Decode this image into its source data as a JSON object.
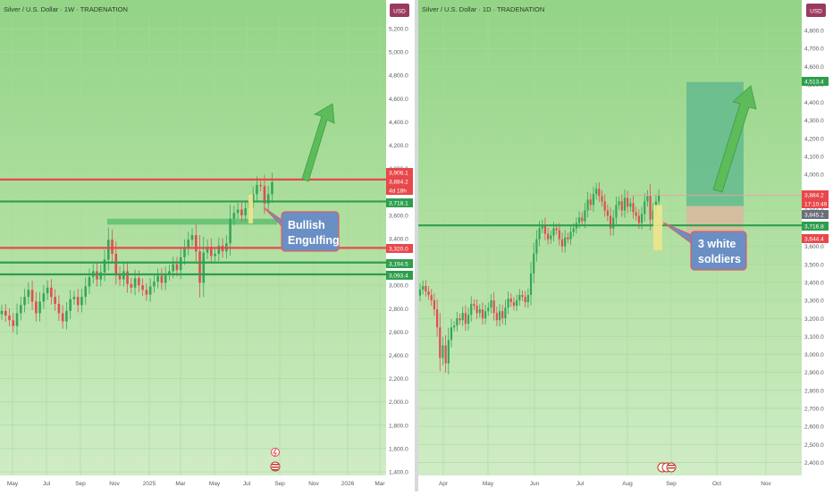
{
  "panels": [
    {
      "title": "Silver / U.S. Dollar · 1W · TRADENATION",
      "currency": "USD",
      "y_labels": [
        "5,200.0",
        "5,000.0",
        "4,800.0",
        "4,600.0",
        "4,400.0",
        "4,200.0",
        "4,000.0",
        "3,800.0",
        "3,600.0",
        "3,400.0",
        "3,200.0",
        "3,000.0",
        "2,800.0",
        "2,600.0",
        "2,400.0",
        "2,200.0",
        "2,000.0",
        "1,800.0",
        "1,600.0",
        "1,400.0"
      ],
      "x_labels": [
        "May",
        "Jul",
        "Sep",
        "Nov",
        "2025",
        "Mar",
        "May",
        "Jul",
        "Sep",
        "Nov",
        "2026",
        "Mar"
      ],
      "price_badges": [
        {
          "text": "3,906.1",
          "color": "#e8474b"
        },
        {
          "text": "3,884.2",
          "color": "#e8474b"
        },
        {
          "text": "4d 18h",
          "color": "#e8474b"
        },
        {
          "text": "3,718.1",
          "color": "#2e9e4e"
        },
        {
          "text": "3,320.0",
          "color": "#e8474b"
        },
        {
          "text": "3,194.5",
          "color": "#2e9e4e"
        },
        {
          "text": "3,093.4",
          "color": "#2e9e4e"
        }
      ],
      "annotation": {
        "line1": "Bullish",
        "line2": "Engulfing"
      }
    },
    {
      "title": "Silver / U.S. Dollar · 1D · TRADENATION",
      "currency": "USD",
      "y_labels": [
        "4,800.0",
        "4,700.0",
        "4,600.0",
        "4,500.0",
        "4,400.0",
        "4,300.0",
        "4,200.0",
        "4,100.0",
        "4,000.0",
        "3,900.0",
        "3,800.0",
        "3,700.0",
        "3,600.0",
        "3,500.0",
        "3,400.0",
        "3,300.0",
        "3,200.0",
        "3,100.0",
        "3,000.0",
        "2,900.0",
        "2,800.0",
        "2,700.0",
        "2,600.0",
        "2,500.0",
        "2,400.0"
      ],
      "x_labels": [
        "Apr",
        "May",
        "Jun",
        "Jul",
        "Aug",
        "Sep",
        "Oct",
        "Nov"
      ],
      "price_badges": [
        {
          "text": "4,513.4",
          "color": "#2e9e4e"
        },
        {
          "text": "3,884.2",
          "color": "#e8474b"
        },
        {
          "text": "17:10:49",
          "color": "#e8474b"
        },
        {
          "text": "3,845.2",
          "color": "#6a6f7a"
        },
        {
          "text": "3,716.8",
          "color": "#2e9e4e"
        },
        {
          "text": "3,644.4",
          "color": "#e8474b"
        }
      ],
      "annotation": {
        "line1": "3 white",
        "line2": "soldiers"
      }
    }
  ],
  "chart_data": [
    {
      "type": "candlestick",
      "title": "Silver / U.S. Dollar · 1W · TRADENATION",
      "ylim": [
        1400,
        5300
      ],
      "series": [
        {
          "values": [
            2780,
            2740,
            2700,
            2650,
            2760,
            2830,
            2900,
            2960,
            2860,
            2760,
            2860,
            2930,
            2980,
            2900,
            2840,
            2760,
            2690,
            2780,
            2880,
            2900,
            2830,
            2900,
            2990,
            3070,
            3120,
            3050,
            3110,
            3220,
            3390,
            3270,
            3100,
            3050,
            3120,
            3010,
            2980,
            3060,
            3000,
            2960,
            2920,
            2990,
            3030,
            3080,
            3020,
            3090,
            3120,
            3180,
            3130,
            3240,
            3320,
            3390,
            3430,
            3290,
            3020,
            3280,
            3330,
            3250,
            3270,
            3340,
            3290,
            3360,
            3570,
            3620,
            3650,
            3600,
            3660,
            3720,
            3780,
            3860,
            3850,
            3700,
            3780,
            3884
          ]
        }
      ],
      "levels": [
        3906.1,
        3718.1,
        3320.0,
        3194.5,
        3093.4
      ],
      "zone": [
        3520,
        3570
      ]
    },
    {
      "type": "candlestick",
      "title": "Silver / U.S. Dollar · 1D · TRADENATION",
      "ylim": [
        2400,
        4900
      ],
      "series": [
        {
          "values": [
            3360,
            3380,
            3350,
            3330,
            3300,
            3250,
            3150,
            2980,
            3050,
            2950,
            3080,
            3150,
            3160,
            3200,
            3190,
            3230,
            3170,
            3220,
            3280,
            3270,
            3230,
            3250,
            3200,
            3240,
            3260,
            3300,
            3230,
            3190,
            3240,
            3200,
            3260,
            3310,
            3290,
            3270,
            3300,
            3330,
            3320,
            3290,
            3330,
            3450,
            3560,
            3640,
            3700,
            3720,
            3670,
            3640,
            3660,
            3700,
            3690,
            3640,
            3600,
            3650,
            3640,
            3680,
            3700,
            3730,
            3760,
            3740,
            3800,
            3860,
            3830,
            3890,
            3920,
            3880,
            3850,
            3800,
            3770,
            3700,
            3760,
            3830,
            3850,
            3800,
            3870,
            3820,
            3840,
            3790,
            3770,
            3730,
            3780,
            3850,
            3880,
            3750,
            3800,
            3850,
            3884
          ]
        }
      ],
      "levels": [
        3716.8,
        3884.2
      ],
      "target": 4513.4,
      "stop": 3644.4
    }
  ]
}
